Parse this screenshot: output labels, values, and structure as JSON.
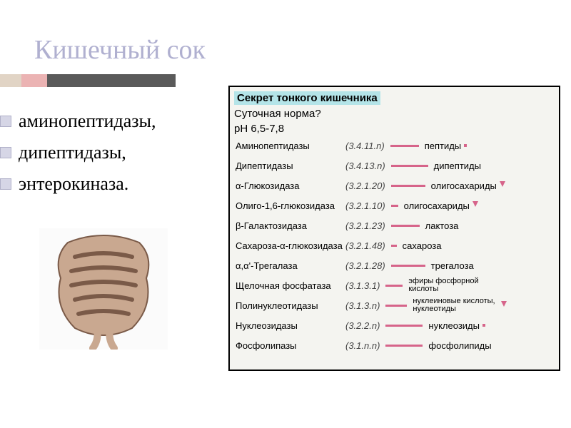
{
  "title": "Кишечный сок",
  "bullets": [
    "аминопептидазы,",
    "дипептидазы,",
    "энтерокиназа."
  ],
  "infobox": {
    "header": "Секрет тонкого кишечника",
    "sub1": "Суточная норма?",
    "sub2": "pH 6,5-7,8",
    "rows": [
      {
        "enzyme": "Аминопептидазы",
        "code": "(3.4.11.n)",
        "dash_w": 40,
        "substrate": "пептиды",
        "marker": "dot"
      },
      {
        "enzyme": "Дипептидазы",
        "code": "(3.4.13.n)",
        "dash_w": 52,
        "substrate": "дипептиды",
        "marker": ""
      },
      {
        "enzyme": "α-Глюкозидаза",
        "code": "(3.2.1.20)",
        "dash_w": 48,
        "substrate": "олигосахариды",
        "marker": "down"
      },
      {
        "enzyme": "Олиго-1,6-глюкозидаза",
        "code": "(3.2.1.10)",
        "dash_w": 10,
        "substrate": "олигосахариды",
        "marker": "down"
      },
      {
        "enzyme": "β-Галактозидаза",
        "code": "(3.2.1.23)",
        "dash_w": 40,
        "substrate": "лактоза",
        "marker": ""
      },
      {
        "enzyme": "Сахароза-α-глюкозидаза",
        "code": "(3.2.1.48)",
        "dash_w": 8,
        "substrate": "сахароза",
        "marker": ""
      },
      {
        "enzyme": "α,α'-Трегалаза",
        "code": "(3.2.1.28)",
        "dash_w": 48,
        "substrate": "трегалоза",
        "marker": ""
      },
      {
        "enzyme": "Щелочная фосфатаза",
        "code": "(3.1.3.1)",
        "dash_w": 24,
        "substrate": "эфиры фосфорной кислоты",
        "marker": ""
      },
      {
        "enzyme": "Полинуклеотидазы",
        "code": "(3.1.3.n)",
        "dash_w": 30,
        "substrate": "нуклеиновые кислоты, нуклеотиды",
        "marker": "down"
      },
      {
        "enzyme": "Нуклеозидазы",
        "code": "(3.2.2.n)",
        "dash_w": 52,
        "substrate": "нуклеозиды",
        "marker": "dot"
      },
      {
        "enzyme": "Фосфолипазы",
        "code": "(3.1.n.n)",
        "dash_w": 52,
        "substrate": "фосфолипиды",
        "marker": ""
      }
    ]
  },
  "colors": {
    "title": "#b0b0d0",
    "dash": "#d6648a",
    "header_bg": "#b4e4e8",
    "box_bg": "#f4f4f0"
  }
}
